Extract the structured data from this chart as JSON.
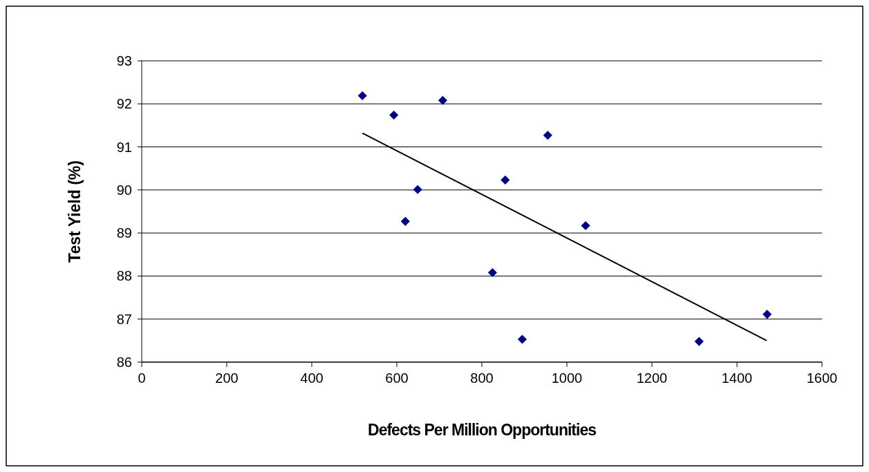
{
  "chart_data": {
    "type": "scatter",
    "xlabel": "Defects Per Million Opportunities",
    "ylabel": "Test Yield (%)",
    "xlim": [
      0,
      1600
    ],
    "xticks": [
      0,
      200,
      400,
      600,
      800,
      1000,
      1200,
      1400,
      1600
    ],
    "ylim": [
      86,
      93
    ],
    "yticks": [
      86,
      87,
      88,
      89,
      90,
      91,
      92,
      93
    ],
    "grid": "y",
    "marker": "diamond",
    "series": [
      {
        "color": "#000080",
        "x": [
          519,
          593,
          708,
          649,
          620,
          955,
          855,
          825,
          895,
          1044,
          1311,
          1471
        ],
        "values": [
          92.19,
          91.74,
          92.08,
          90.01,
          89.27,
          91.27,
          90.23,
          88.08,
          86.53,
          89.17,
          86.48,
          87.11
        ]
      },
      {
        "type": "line",
        "color": "#000000",
        "x": [
          519,
          1470
        ],
        "values": [
          91.32,
          86.5
        ],
        "marker": "none",
        "line_style": "solid"
      }
    ]
  }
}
